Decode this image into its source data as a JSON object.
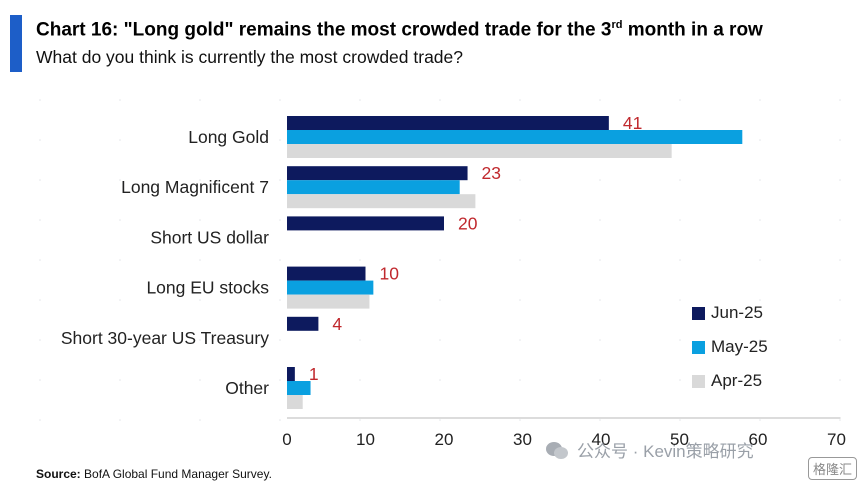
{
  "header": {
    "title_main": "Chart 16: \"Long gold\" remains the most crowded trade for the 3",
    "title_sup": "rd",
    "title_tail": " month in a row",
    "subtitle": "What do you think is currently the most crowded trade?"
  },
  "footer": {
    "source_label": "Source:",
    "source_text": " BofA Global Fund Manager Survey."
  },
  "watermark": {
    "text": "公众号 · Kevin策略研究",
    "logo": "格隆汇"
  },
  "colors": {
    "jun": "#0d1a5e",
    "may": "#0aa0e0",
    "apr": "#d9d9d9",
    "label": "#c0282d",
    "axis": "#b8b8b8"
  },
  "chart_data": {
    "type": "bar",
    "orientation": "horizontal",
    "title": "Chart 16: \"Long gold\" remains the most crowded trade for the 3rd month in a row",
    "subtitle": "What do you think is currently the most crowded trade?",
    "categories": [
      "Long Gold",
      "Long Magnificent 7",
      "Short US dollar",
      "Long EU stocks",
      "Short 30-year US Treasury",
      "Other"
    ],
    "series": [
      {
        "name": "Jun-25",
        "values": [
          41,
          23,
          20,
          10,
          4,
          1
        ]
      },
      {
        "name": "May-25",
        "values": [
          58,
          22,
          0,
          11,
          0,
          3
        ]
      },
      {
        "name": "Apr-25",
        "values": [
          49,
          24,
          0,
          10.5,
          0,
          2
        ]
      }
    ],
    "data_labels": [
      "41",
      "23",
      "20",
      "10",
      "4",
      "1"
    ],
    "xlim": [
      0,
      70
    ],
    "xticks": [
      "0",
      "10",
      "20",
      "30",
      "40",
      "50",
      "60",
      "70"
    ],
    "legend_position": "right",
    "grid": false
  }
}
